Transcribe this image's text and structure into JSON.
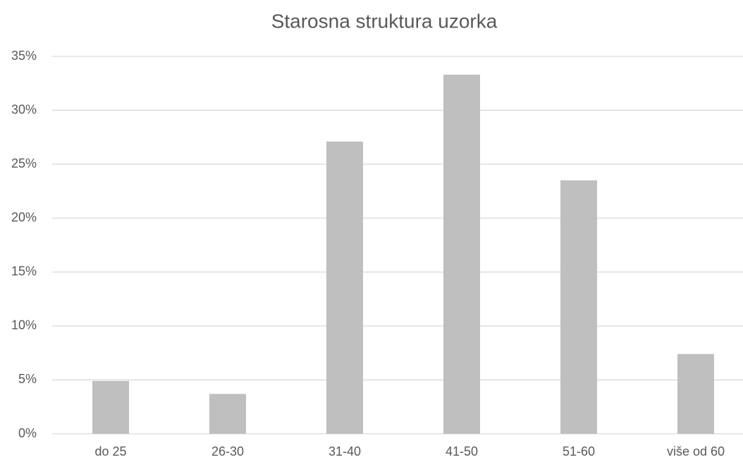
{
  "chart_data": {
    "type": "bar",
    "title": "Starosna struktura uzorka",
    "categories": [
      "do 25",
      "26-30",
      "31-40",
      "41-50",
      "51-60",
      "više od 60"
    ],
    "values": [
      4.9,
      3.7,
      27.1,
      33.3,
      23.5,
      7.4
    ],
    "color": "#bfbfbf",
    "ylim": [
      0,
      35
    ],
    "yticks": [
      {
        "value": 0,
        "label": "0%"
      },
      {
        "value": 5,
        "label": "5%"
      },
      {
        "value": 10,
        "label": "10%"
      },
      {
        "value": 15,
        "label": "15%"
      },
      {
        "value": 20,
        "label": "20%"
      },
      {
        "value": 25,
        "label": "25%"
      },
      {
        "value": 30,
        "label": "30%"
      },
      {
        "value": 35,
        "label": "35%"
      }
    ],
    "grid": true
  }
}
